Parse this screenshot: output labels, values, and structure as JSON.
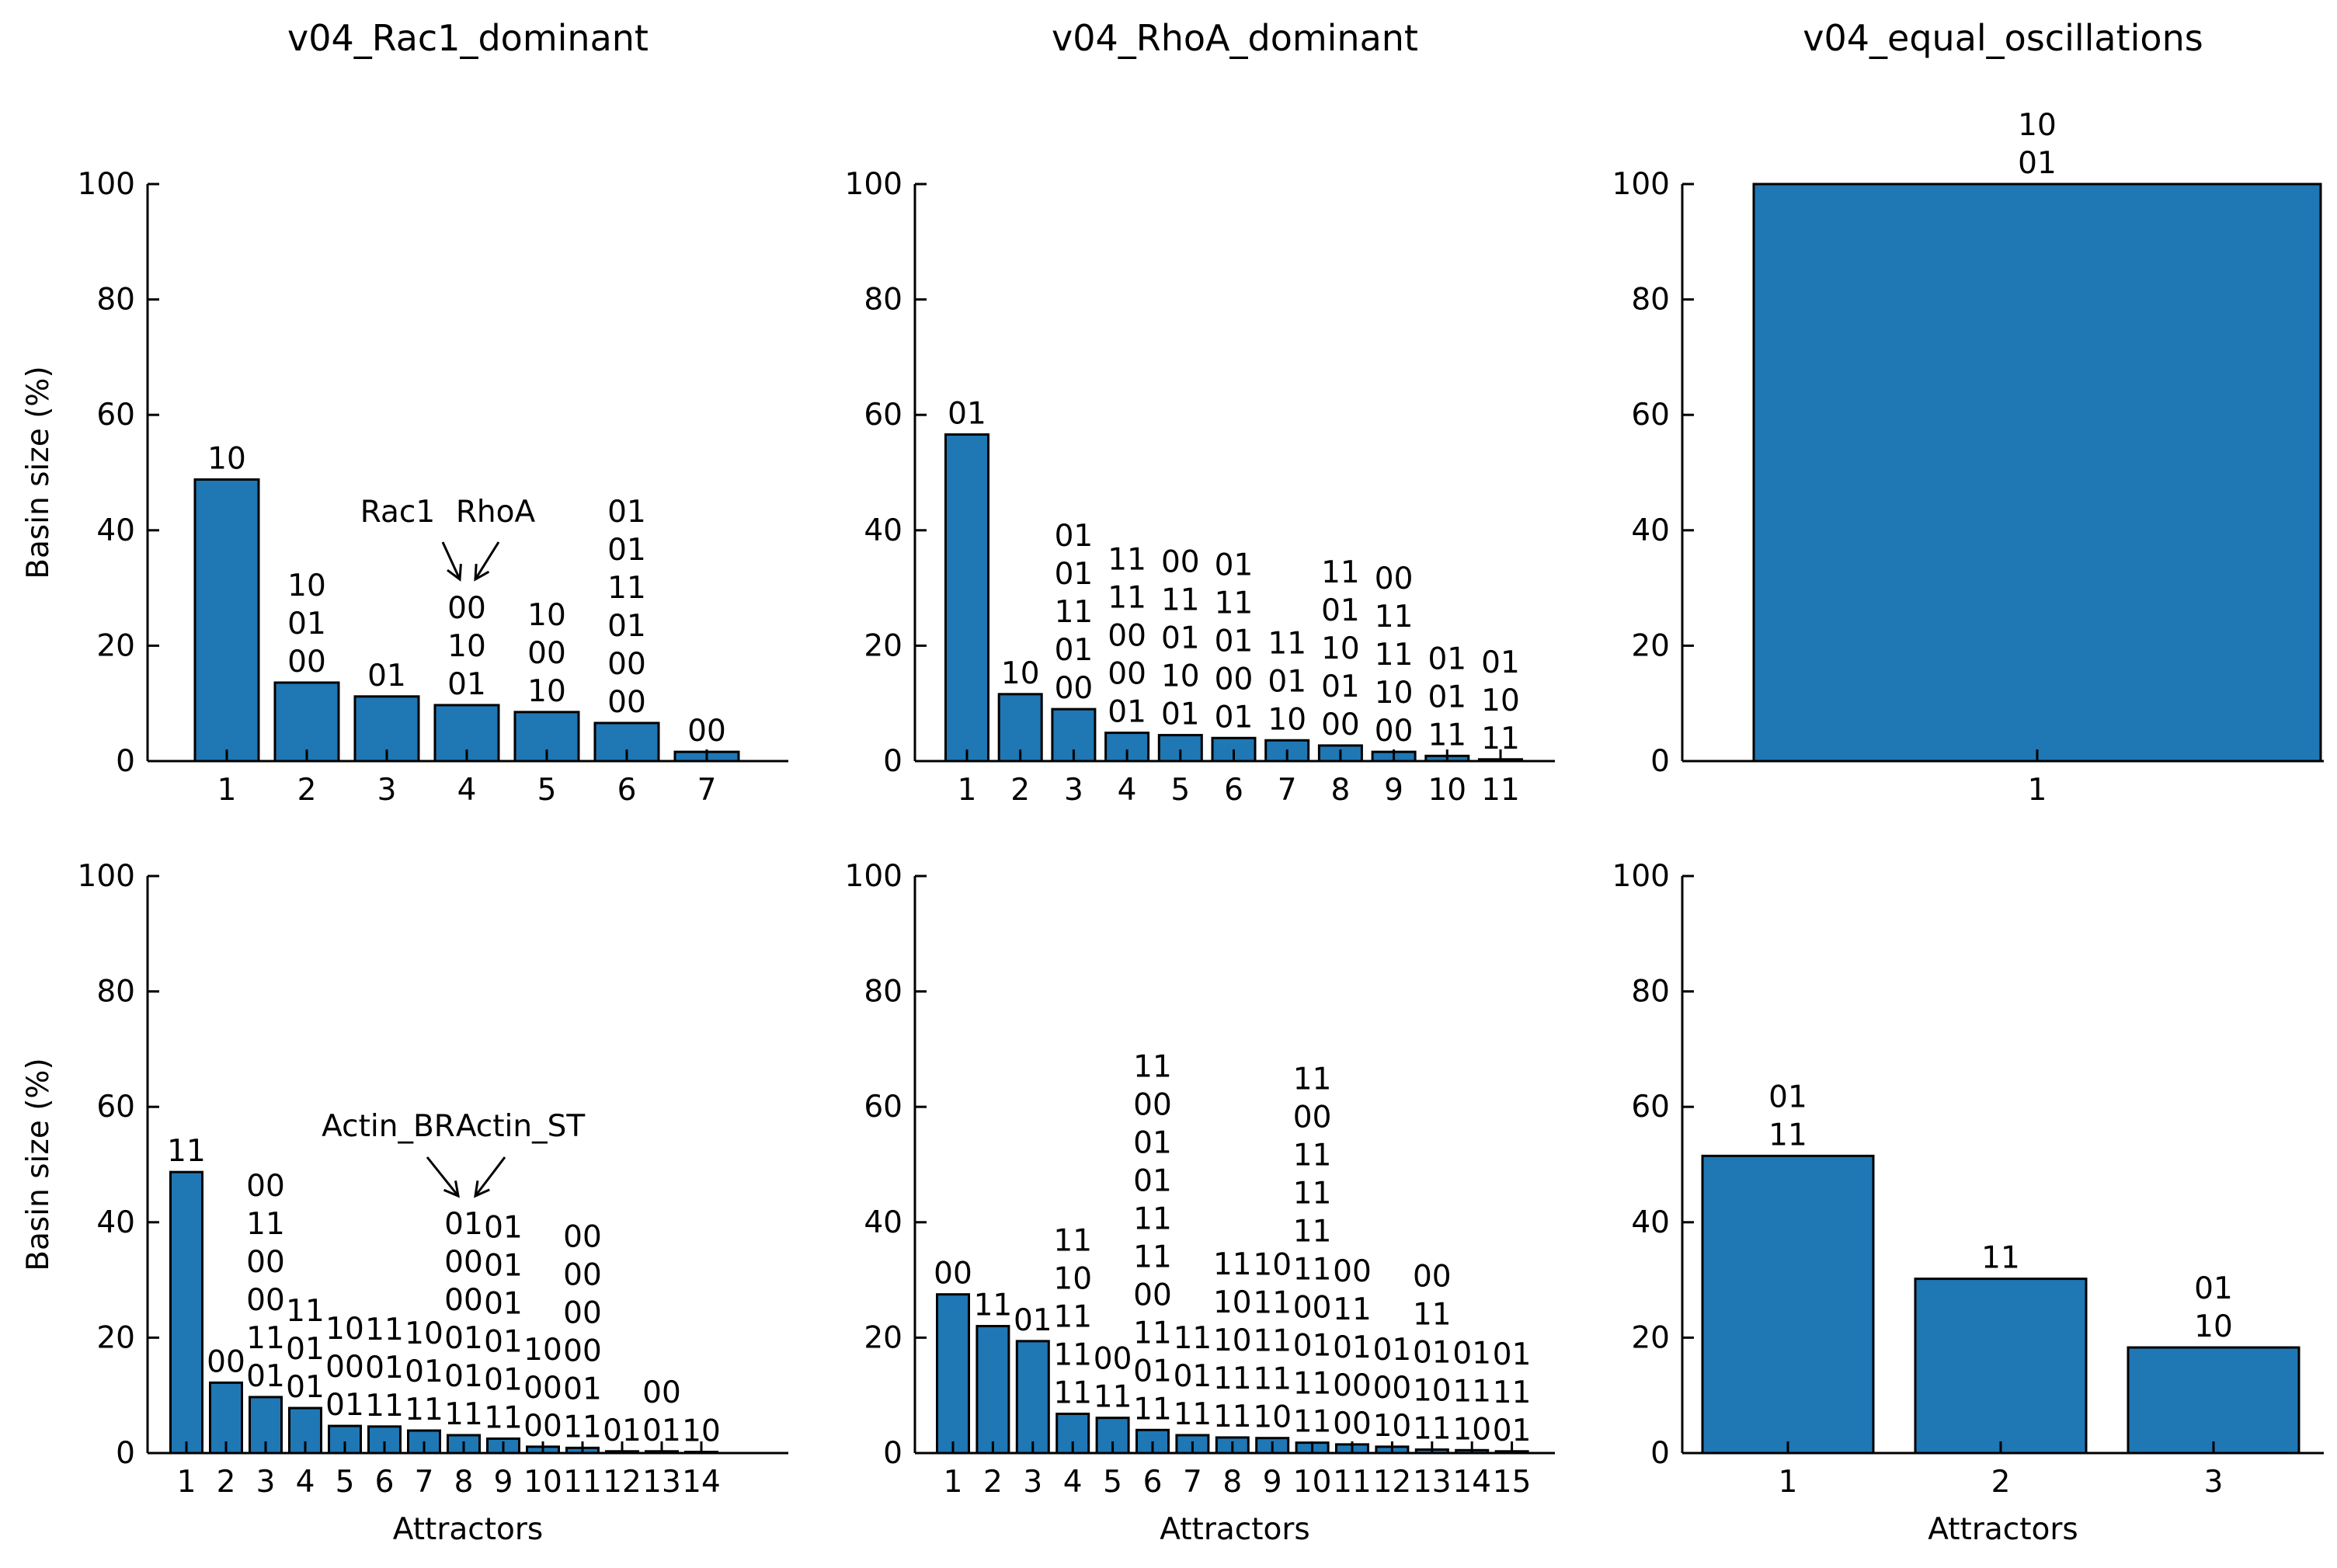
{
  "colors": {
    "bar": "#1f77b4",
    "edge": "#000000",
    "axis": "#000000",
    "text": "#000000"
  },
  "ylabel": "Basin size (%)",
  "xlabel": "Attractors",
  "yticks": [
    "0",
    "20",
    "40",
    "60",
    "80",
    "100"
  ],
  "annotations": [
    {
      "chart": 0,
      "left": "Rac1",
      "right": "RhoA"
    },
    {
      "chart": 3,
      "left": "Actin_BR",
      "right": "Actin_ST"
    }
  ],
  "chart_data": [
    {
      "type": "bar",
      "title": "v04_Rac1_dominant",
      "ylabel": "Basin size (%)",
      "xlabel": "",
      "ylim": [
        0,
        100
      ],
      "grid": false,
      "categories": [
        "1",
        "2",
        "3",
        "4",
        "5",
        "6",
        "7"
      ],
      "values": [
        48.8,
        13.6,
        11.2,
        9.7,
        8.5,
        6.6,
        1.6
      ],
      "bar_labels": [
        [
          "10"
        ],
        [
          "10",
          "01",
          "00"
        ],
        [
          "01"
        ],
        [
          "00",
          "10",
          "01"
        ],
        [
          "10",
          "00",
          "10"
        ],
        [
          "01",
          "01",
          "11",
          "01",
          "00",
          "00"
        ],
        [
          "00"
        ]
      ]
    },
    {
      "type": "bar",
      "title": "v04_RhoA_dominant",
      "ylabel": "",
      "xlabel": "",
      "ylim": [
        0,
        100
      ],
      "grid": false,
      "categories": [
        "1",
        "2",
        "3",
        "4",
        "5",
        "6",
        "7",
        "8",
        "9",
        "10",
        "11"
      ],
      "values": [
        56.6,
        11.6,
        9.0,
        4.9,
        4.5,
        4.0,
        3.6,
        2.7,
        1.6,
        0.9,
        0.3
      ],
      "bar_labels": [
        [
          "01"
        ],
        [
          "10"
        ],
        [
          "01",
          "01",
          "11",
          "01",
          "00"
        ],
        [
          "11",
          "11",
          "00",
          "00",
          "01"
        ],
        [
          "00",
          "11",
          "01",
          "10",
          "01"
        ],
        [
          "01",
          "11",
          "01",
          "00",
          "01"
        ],
        [
          "11",
          "01",
          "10"
        ],
        [
          "11",
          "01",
          "10",
          "01",
          "00"
        ],
        [
          "00",
          "11",
          "11",
          "10",
          "00"
        ],
        [
          "01",
          "01",
          "11"
        ],
        [
          "01",
          "10",
          "11"
        ]
      ]
    },
    {
      "type": "bar",
      "title": "v04_equal_oscillations",
      "ylabel": "",
      "xlabel": "",
      "ylim": [
        0,
        100
      ],
      "grid": false,
      "categories": [
        "1"
      ],
      "values": [
        100
      ],
      "bar_labels": [
        [
          "10",
          "01"
        ]
      ]
    },
    {
      "type": "bar",
      "title": "",
      "ylabel": "Basin size (%)",
      "xlabel": "Attractors",
      "ylim": [
        0,
        100
      ],
      "grid": false,
      "categories": [
        "1",
        "2",
        "3",
        "4",
        "5",
        "6",
        "7",
        "8",
        "9",
        "10",
        "11",
        "12",
        "13",
        "14"
      ],
      "values": [
        48.7,
        12.2,
        9.7,
        7.8,
        4.7,
        4.6,
        3.9,
        3.1,
        2.5,
        1.1,
        0.9,
        0.3,
        0.3,
        0.2
      ],
      "bar_labels": [
        [
          "11"
        ],
        [
          "00"
        ],
        [
          "00",
          "11",
          "00",
          "00",
          "11",
          "01"
        ],
        [
          "11",
          "01",
          "01"
        ],
        [
          "10",
          "00",
          "01"
        ],
        [
          "11",
          "01",
          "11"
        ],
        [
          "10",
          "01",
          "11"
        ],
        [
          "01",
          "00",
          "00",
          "01",
          "01",
          "11"
        ],
        [
          "01",
          "01",
          "01",
          "01",
          "01",
          "11"
        ],
        [
          "10",
          "00",
          "00"
        ],
        [
          "00",
          "00",
          "00",
          "00",
          "01",
          "11"
        ],
        [
          "01"
        ],
        [
          "00",
          "01"
        ],
        [
          "10"
        ]
      ]
    },
    {
      "type": "bar",
      "title": "",
      "ylabel": "",
      "xlabel": "Attractors",
      "ylim": [
        0,
        100
      ],
      "grid": false,
      "categories": [
        "1",
        "2",
        "3",
        "4",
        "5",
        "6",
        "7",
        "8",
        "9",
        "10",
        "11",
        "12",
        "13",
        "14",
        "15"
      ],
      "values": [
        27.5,
        22.0,
        19.4,
        6.8,
        6.1,
        4.0,
        3.1,
        2.7,
        2.6,
        1.8,
        1.5,
        1.1,
        0.6,
        0.5,
        0.3
      ],
      "bar_labels": [
        [
          "00"
        ],
        [
          "11"
        ],
        [
          "01"
        ],
        [
          "11",
          "10",
          "11",
          "11",
          "11"
        ],
        [
          "00",
          "11"
        ],
        [
          "11",
          "00",
          "01",
          "01",
          "11",
          "11",
          "00",
          "11",
          "01",
          "11"
        ],
        [
          "11",
          "01",
          "11"
        ],
        [
          "11",
          "10",
          "10",
          "11",
          "11"
        ],
        [
          "10",
          "11",
          "11",
          "11",
          "10"
        ],
        [
          "11",
          "00",
          "11",
          "11",
          "11",
          "11",
          "00",
          "01",
          "11",
          "11"
        ],
        [
          "00",
          "11",
          "01",
          "00",
          "00"
        ],
        [
          "01",
          "00",
          "10"
        ],
        [
          "00",
          "11",
          "01",
          "10",
          "11"
        ],
        [
          "01",
          "11",
          "10"
        ],
        [
          "01",
          "11",
          "01"
        ]
      ]
    },
    {
      "type": "bar",
      "title": "",
      "ylabel": "",
      "xlabel": "Attractors",
      "ylim": [
        0,
        100
      ],
      "grid": false,
      "categories": [
        "1",
        "2",
        "3"
      ],
      "values": [
        51.5,
        30.2,
        18.3
      ],
      "bar_labels": [
        [
          "01",
          "11"
        ],
        [
          "11"
        ],
        [
          "01",
          "10"
        ]
      ]
    }
  ]
}
